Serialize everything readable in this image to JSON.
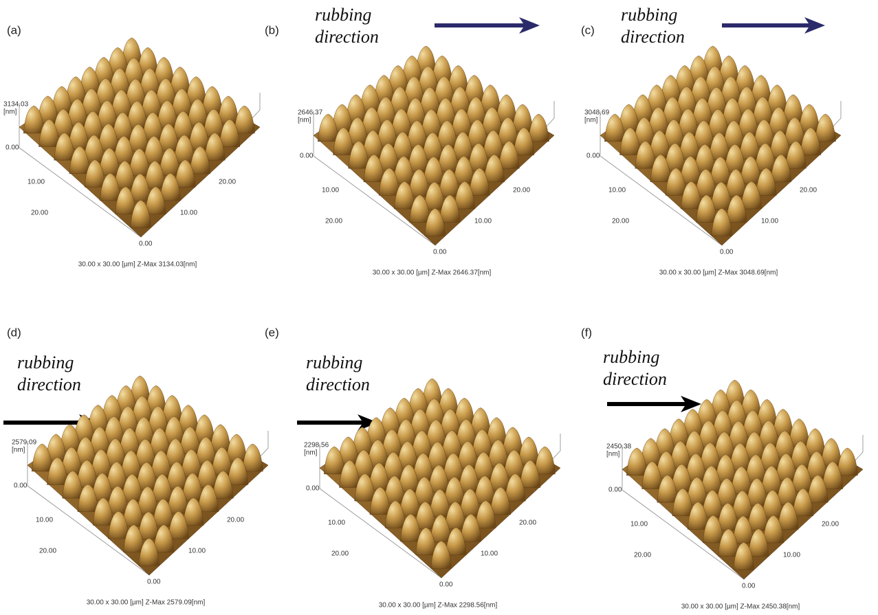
{
  "panels": [
    {
      "label": "(a)",
      "z_label": "3134.03",
      "z_unit": "[nm]",
      "z_zero": "0.00",
      "left_ticks": [
        "10.00",
        "20.00"
      ],
      "right_ticks": [
        "10.00",
        "20.00"
      ],
      "origin": "0.00",
      "caption": "30.00 x 30.00 [µm]  Z-Max 3134.03[nm]"
    },
    {
      "label": "(b)",
      "annotation": [
        "rubbing",
        "direction"
      ],
      "z_label": "2646.37",
      "z_unit": "[nm]",
      "z_zero": "0.00",
      "left_ticks": [
        "10.00",
        "20.00"
      ],
      "right_ticks": [
        "10.00",
        "20.00"
      ],
      "origin": "0.00",
      "caption": "30.00 x 30.00 [µm]  Z-Max 2646.37[nm]"
    },
    {
      "label": "(c)",
      "annotation": [
        "rubbing",
        "direction"
      ],
      "z_label": "3048.69",
      "z_unit": "[nm]",
      "z_zero": "0.00",
      "left_ticks": [
        "10.00",
        "20.00"
      ],
      "right_ticks": [
        "10.00",
        "20.00"
      ],
      "origin": "0.00",
      "caption": "30.00 x 30.00 [µm]  Z-Max 3048.69[nm]"
    },
    {
      "label": "(d)",
      "annotation": [
        "rubbing",
        "direction"
      ],
      "z_label": "2579.09",
      "z_unit": "[nm]",
      "z_zero": "0.00",
      "left_ticks": [
        "10.00",
        "20.00"
      ],
      "right_ticks": [
        "10.00",
        "20.00"
      ],
      "origin": "0.00",
      "caption": "30.00 x 30.00 [µm]  Z-Max 2579.09[nm]"
    },
    {
      "label": "(e)",
      "annotation": [
        "rubbing",
        "direction"
      ],
      "z_label": "2298.56",
      "z_unit": "[nm]",
      "z_zero": "0.00",
      "left_ticks": [
        "10.00",
        "20.00"
      ],
      "right_ticks": [
        "10.00",
        "20.00"
      ],
      "origin": "0.00",
      "caption": "30.00 x 30.00 [µm]  Z-Max 2298.56[nm]"
    },
    {
      "label": "(f)",
      "annotation": [
        "rubbing",
        "direction"
      ],
      "z_label": "2450.38",
      "z_unit": "[nm]",
      "z_zero": "0.00",
      "left_ticks": [
        "10.00",
        "20.00"
      ],
      "right_ticks": [
        "10.00",
        "20.00"
      ],
      "origin": "0.00",
      "caption": "30.00 x 30.00 [µm]  Z-Max 2450.38[nm]"
    }
  ]
}
